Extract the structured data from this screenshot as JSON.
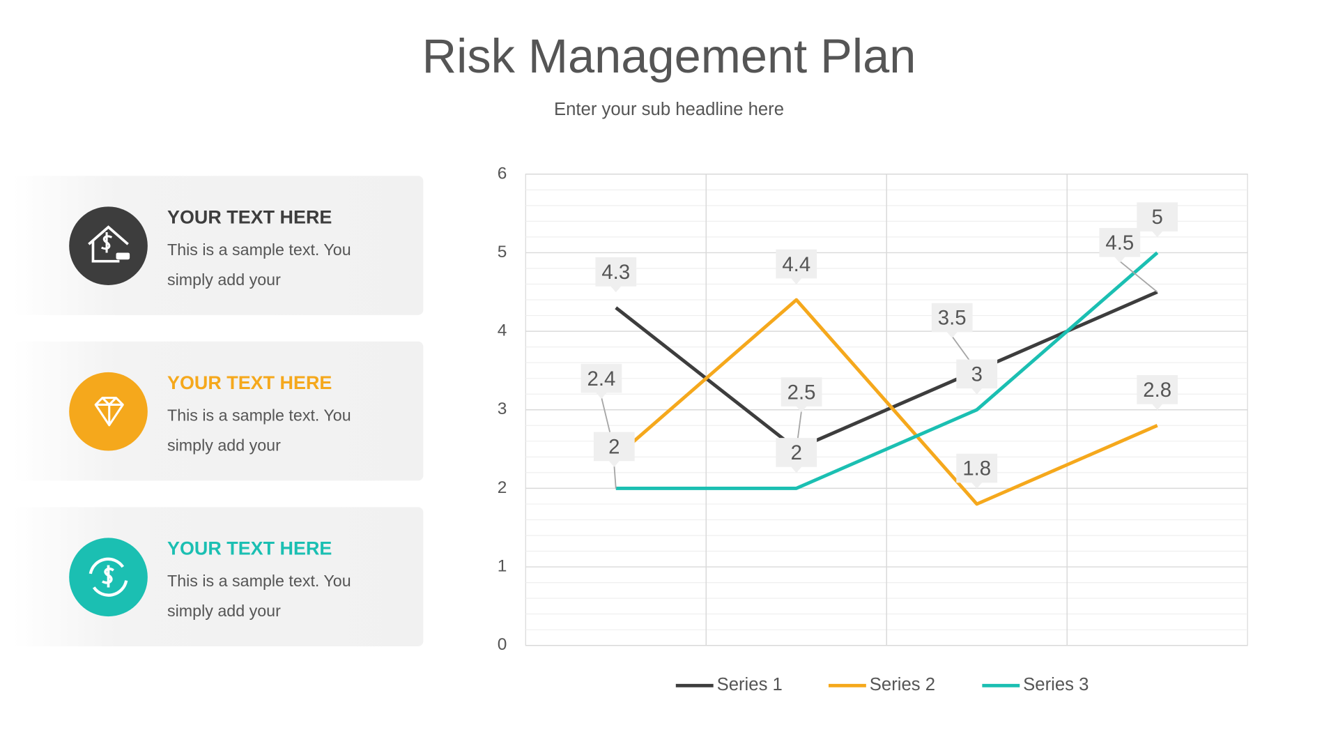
{
  "header": {
    "title": "Risk Management Plan",
    "subtitle": "Enter your sub headline here"
  },
  "cards": [
    {
      "title": "YOUR TEXT HERE",
      "lines": [
        "This is a sample text. You",
        "simply add your"
      ]
    },
    {
      "title": "YOUR TEXT HERE",
      "lines": [
        "This is a sample text. You",
        "simply add your"
      ]
    },
    {
      "title": "YOUR TEXT HERE",
      "lines": [
        "This is a sample text. You",
        "simply add your"
      ]
    }
  ],
  "chart_data": {
    "type": "line",
    "categories": [
      null,
      null,
      null,
      null
    ],
    "series": [
      {
        "name": "Series 1",
        "color": "#3d3d3d",
        "values": [
          4.3,
          2.5,
          3.5,
          4.5
        ]
      },
      {
        "name": "Series 2",
        "color": "#f5a81c",
        "values": [
          2.4,
          4.4,
          1.8,
          2.8
        ]
      },
      {
        "name": "Series 3",
        "color": "#1bbfb2",
        "values": [
          2,
          2,
          3,
          5
        ]
      }
    ],
    "ylim": [
      0,
      6
    ],
    "yticks": [
      0,
      1,
      2,
      3,
      4,
      5,
      6
    ],
    "grid": true,
    "legend": "bottom"
  }
}
